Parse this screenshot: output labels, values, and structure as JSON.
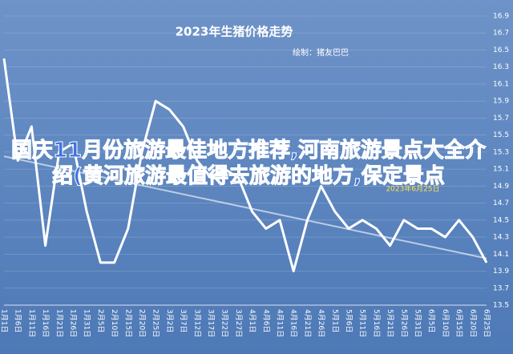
{
  "chart_data": {
    "type": "line",
    "title": "2023年生猪价格走势",
    "subtitle": "绘制：猪友巴巴",
    "annotation": "2023年6月25日",
    "overlay_text": "国庆11月份旅游最佳地方推荐,河南旅游景点大全介绍(黄河旅游最值得去旅游的地方,保定景点",
    "categories": [
      "1月1日",
      "1月6日",
      "1月11日",
      "1月16日",
      "1月21日",
      "1月26日",
      "1月31日",
      "2月5日",
      "2月10日",
      "2月15日",
      "2月20日",
      "2月25日",
      "3月2日",
      "3月7日",
      "3月12日",
      "3月17日",
      "3月22日",
      "3月27日",
      "4月1日",
      "4月6日",
      "4月11日",
      "4月16日",
      "4月21日",
      "4月26日",
      "5月1日",
      "5月6日",
      "5月11日",
      "5月16日",
      "5月21日",
      "5月26日",
      "5月31日",
      "6月5日",
      "6月10日",
      "6月15日",
      "6月20日",
      "6月25日"
    ],
    "values": [
      16.4,
      15.2,
      15.6,
      14.2,
      15.3,
      15.4,
      14.6,
      14.0,
      14.0,
      14.4,
      15.3,
      15.9,
      15.8,
      15.6,
      15.2,
      15.0,
      15.1,
      15.0,
      14.6,
      14.4,
      14.5,
      13.9,
      14.5,
      14.9,
      14.6,
      14.4,
      14.5,
      14.4,
      14.2,
      14.5,
      14.4,
      14.4,
      14.3,
      14.5,
      14.3,
      14.0
    ],
    "color": "#ffffff",
    "trendline": [
      15.25,
      14.05
    ],
    "ylim": [
      13.5,
      16.9
    ],
    "yticks": [
      13.5,
      13.7,
      13.9,
      14.1,
      14.3,
      14.5,
      14.7,
      14.9,
      15.1,
      15.3,
      15.5,
      15.7,
      15.9,
      16.1,
      16.3,
      16.5,
      16.7,
      16.9
    ],
    "grid": true
  }
}
